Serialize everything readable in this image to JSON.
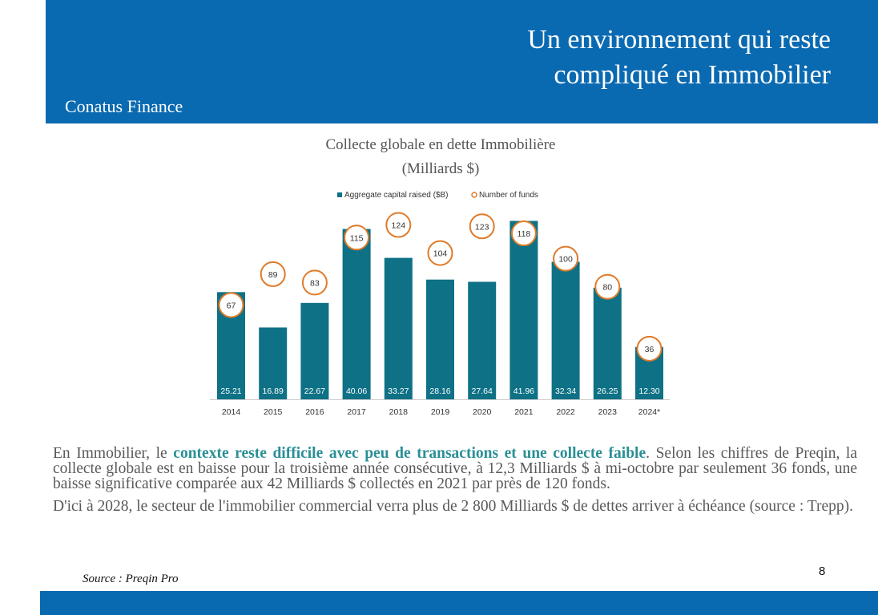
{
  "header": {
    "title_line1": "Un environnement qui reste",
    "title_line2": "compliqué en Immobilier",
    "brand": "Conatus Finance"
  },
  "chart_title": {
    "line1": "Collecte globale en dette Immobilière",
    "line2": "(Milliards $)"
  },
  "chart_data": {
    "type": "bar",
    "categories": [
      "2014",
      "2015",
      "2016",
      "2017",
      "2018",
      "2019",
      "2020",
      "2021",
      "2022",
      "2023",
      "2024*"
    ],
    "series": [
      {
        "name": "Aggregate capital raised ($B)",
        "type": "bar",
        "color": "#0e7185",
        "values": [
          25.21,
          16.89,
          22.67,
          40.06,
          33.27,
          28.16,
          27.64,
          41.96,
          32.34,
          26.25,
          12.3
        ]
      },
      {
        "name": "Number of funds",
        "type": "marker",
        "color": "#e07b2a",
        "values": [
          67,
          89,
          83,
          115,
          124,
          104,
          123,
          118,
          100,
          80,
          36
        ]
      }
    ],
    "bar_labels": [
      "25.21",
      "16.89",
      "22.67",
      "40.06",
      "33.27",
      "28.16",
      "27.64",
      "41.96",
      "32.34",
      "26.25",
      "12.30"
    ],
    "marker_labels": [
      "67",
      "89",
      "83",
      "115",
      "124",
      "104",
      "123",
      "118",
      "100",
      "80",
      "36"
    ],
    "legend": [
      "Aggregate capital raised ($B)",
      "Number of funds"
    ],
    "legend_position": "top",
    "ylim": [
      0,
      43
    ],
    "funds_ylim": [
      0,
      130
    ],
    "grid": false
  },
  "paragraph1": {
    "before": "En Immobilier, le ",
    "highlight": "contexte reste difficile avec peu de transactions et une collecte faible",
    "after": ". Selon les chiffres de Preqin, la collecte globale est en baisse pour la troisième année consécutive, à 12,3 Milliards $ à mi-octobre par seulement 36 fonds, une baisse significative comparée aux 42 Milliards $ collectés en 2021 par près de 120 fonds."
  },
  "paragraph2": "D'ici à 2028, le secteur de l'immobilier commercial verra plus de 2 800 Milliards $ de dettes arriver à échéance (source : Trepp).",
  "source": "Source : Preqin Pro",
  "page_number": "8",
  "colors": {
    "brand_blue": "#0a6ab1",
    "bar": "#0e7185",
    "marker": "#e07b2a",
    "highlight": "#2a8f96"
  }
}
